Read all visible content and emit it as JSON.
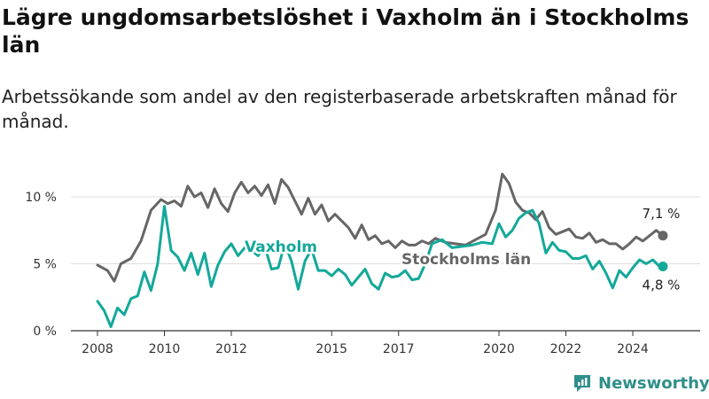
{
  "title": "Lägre ungdomsarbetslöshet i Vaxholm än i Stockholms län",
  "subtitle": "Arbetssökande som andel av den registerbaserade arbetskraften månad för månad.",
  "brand": "Newsworthy",
  "colors": {
    "stockholm": "#666666",
    "vaxholm": "#13a89a",
    "grid": "#dddddd",
    "axis": "#333333"
  },
  "chart_data": {
    "type": "line",
    "title": "Lägre ungdomsarbetslöshet i Vaxholm än i Stockholms län",
    "ylim": [
      0,
      11.5
    ],
    "xlim": [
      2007.6,
      2025.5
    ],
    "y_ticks": [
      0,
      5,
      10
    ],
    "y_tick_labels": [
      "0 %",
      "5 %",
      "10 %"
    ],
    "x_ticks": [
      2008,
      2010,
      2012,
      2015,
      2017,
      2020,
      2022,
      2024
    ],
    "x_tick_labels": [
      "2008",
      "2010",
      "2012",
      "2015",
      "2017",
      "2020",
      "2022",
      "2024"
    ],
    "grid": "horizontal",
    "series": [
      {
        "name": "Stockholms län",
        "end_label": "7,1 %",
        "x": [
          2008.0,
          2008.3,
          2008.5,
          2008.7,
          2009.0,
          2009.3,
          2009.6,
          2009.9,
          2010.1,
          2010.3,
          2010.5,
          2010.7,
          2010.9,
          2011.1,
          2011.3,
          2011.5,
          2011.7,
          2011.9,
          2012.1,
          2012.3,
          2012.5,
          2012.7,
          2012.9,
          2013.1,
          2013.3,
          2013.5,
          2013.7,
          2013.9,
          2014.1,
          2014.3,
          2014.5,
          2014.7,
          2014.9,
          2015.1,
          2015.3,
          2015.5,
          2015.7,
          2015.9,
          2016.1,
          2016.3,
          2016.5,
          2016.7,
          2016.9,
          2017.1,
          2017.3,
          2017.5,
          2017.7,
          2017.9,
          2018.1,
          2018.4,
          2018.7,
          2019.0,
          2019.3,
          2019.6,
          2019.9,
          2020.1,
          2020.3,
          2020.5,
          2020.7,
          2020.9,
          2021.1,
          2021.3,
          2021.5,
          2021.7,
          2021.9,
          2022.1,
          2022.3,
          2022.5,
          2022.7,
          2022.9,
          2023.1,
          2023.3,
          2023.5,
          2023.7,
          2023.9,
          2024.1,
          2024.3,
          2024.5,
          2024.7,
          2024.9
        ],
        "y": [
          4.9,
          4.5,
          3.7,
          5.0,
          5.4,
          6.7,
          9.0,
          9.8,
          9.5,
          9.7,
          9.3,
          10.8,
          10.0,
          10.3,
          9.2,
          10.6,
          9.5,
          8.9,
          10.3,
          11.1,
          10.3,
          10.8,
          10.1,
          10.9,
          9.5,
          11.3,
          10.7,
          9.7,
          8.7,
          9.9,
          8.7,
          9.4,
          8.2,
          8.7,
          8.2,
          7.7,
          6.9,
          7.9,
          6.8,
          7.1,
          6.5,
          6.7,
          6.2,
          6.7,
          6.4,
          6.4,
          6.7,
          6.5,
          6.9,
          6.6,
          6.5,
          6.4,
          6.8,
          7.2,
          9.0,
          11.7,
          11.0,
          9.6,
          9.0,
          8.8,
          8.3,
          8.9,
          7.7,
          7.2,
          7.4,
          7.6,
          7.0,
          6.9,
          7.3,
          6.6,
          6.8,
          6.5,
          6.5,
          6.1,
          6.5,
          7.0,
          6.7,
          7.1,
          7.5,
          7.1
        ]
      },
      {
        "name": "Vaxholm",
        "end_label": "4,8 %",
        "x": [
          2008.0,
          2008.2,
          2008.4,
          2008.6,
          2008.8,
          2009.0,
          2009.2,
          2009.4,
          2009.6,
          2009.8,
          2010.0,
          2010.2,
          2010.4,
          2010.6,
          2010.8,
          2011.0,
          2011.2,
          2011.4,
          2011.6,
          2011.8,
          2012.0,
          2012.2,
          2012.4,
          2012.6,
          2012.8,
          2013.0,
          2013.2,
          2013.4,
          2013.6,
          2013.8,
          2014.0,
          2014.2,
          2014.4,
          2014.6,
          2014.8,
          2015.0,
          2015.2,
          2015.4,
          2015.6,
          2015.8,
          2016.0,
          2016.2,
          2016.4,
          2016.6,
          2016.8,
          2017.0,
          2017.2,
          2017.4,
          2017.6,
          2017.8,
          2018.0,
          2018.3,
          2018.6,
          2018.9,
          2019.2,
          2019.5,
          2019.8,
          2020.0,
          2020.2,
          2020.4,
          2020.6,
          2020.8,
          2021.0,
          2021.2,
          2021.4,
          2021.6,
          2021.8,
          2022.0,
          2022.2,
          2022.4,
          2022.6,
          2022.8,
          2023.0,
          2023.2,
          2023.4,
          2023.6,
          2023.8,
          2024.0,
          2024.2,
          2024.4,
          2024.6,
          2024.8,
          2024.9
        ],
        "y": [
          2.2,
          1.5,
          0.3,
          1.7,
          1.2,
          2.4,
          2.6,
          4.4,
          3.0,
          5.0,
          9.3,
          6.0,
          5.5,
          4.5,
          5.8,
          4.2,
          5.8,
          3.3,
          4.9,
          5.9,
          6.5,
          5.6,
          6.2,
          6.0,
          5.6,
          6.3,
          4.6,
          4.7,
          6.5,
          5.2,
          3.1,
          5.2,
          6.1,
          4.5,
          4.5,
          4.1,
          4.6,
          4.2,
          3.4,
          4.0,
          4.6,
          3.5,
          3.1,
          4.3,
          4.0,
          4.1,
          4.5,
          3.8,
          3.9,
          5.0,
          6.5,
          6.8,
          6.2,
          6.3,
          6.4,
          6.6,
          6.5,
          8.0,
          7.0,
          7.5,
          8.4,
          8.8,
          9.0,
          8.0,
          5.8,
          6.6,
          6.0,
          5.9,
          5.4,
          5.4,
          5.6,
          4.6,
          5.2,
          4.3,
          3.2,
          4.5,
          4.0,
          4.7,
          5.3,
          5.0,
          5.3,
          4.8,
          4.8
        ]
      }
    ],
    "series_labels": [
      "Vaxholm",
      "Stockholms län"
    ]
  }
}
